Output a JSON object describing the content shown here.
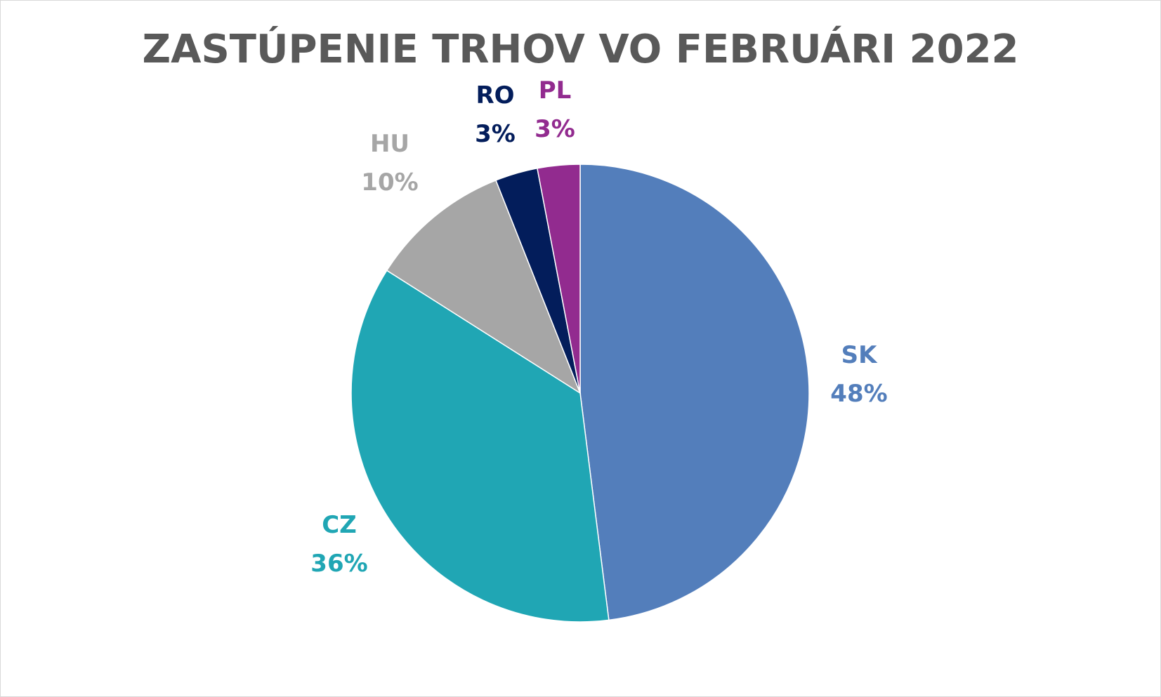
{
  "chart_data": {
    "type": "pie",
    "title": "ZASTÚPENIE TRHOV VO FEBRUÁRI 2022",
    "start_angle_deg": 0,
    "direction": "clockwise",
    "slices": [
      {
        "label": "SK",
        "value": 48,
        "display": "48%",
        "color": "#537ebb"
      },
      {
        "label": "CZ",
        "value": 36,
        "display": "36%",
        "color": "#20a6b4"
      },
      {
        "label": "HU",
        "value": 10,
        "display": "10%",
        "color": "#a6a6a6"
      },
      {
        "label": "RO",
        "value": 3,
        "display": "3%",
        "color": "#031d5b"
      },
      {
        "label": "PL",
        "value": 3,
        "display": "3%",
        "color": "#922b8f"
      }
    ]
  }
}
